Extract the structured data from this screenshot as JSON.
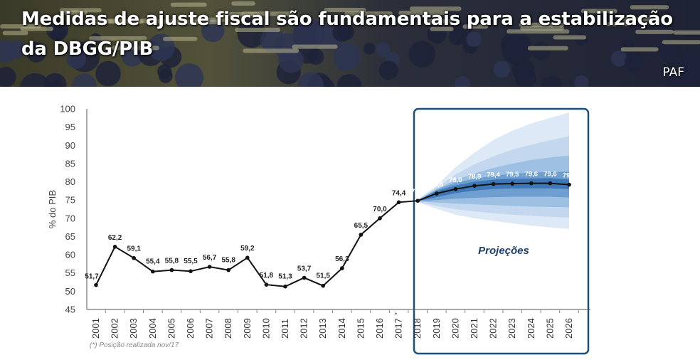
{
  "header": {
    "title": "Medidas de ajuste fiscal são fundamentais para a estabilização da DBGG/PIB",
    "tag": "PAF"
  },
  "footnote": "(*) Posição realizada nov/17",
  "colors": {
    "line": "#111111",
    "projection_border": "#1f4e79",
    "fan_outer": "#dde9f6",
    "fan_2": "#c3d8ee",
    "fan_3": "#9dc0e2",
    "fan_4": "#6f9fd0",
    "fan_inner": "#3f78b6",
    "projection_label": "#1f3f68"
  },
  "chart_data": {
    "type": "line",
    "ylabel": "% do PIB",
    "ylim": [
      45,
      100
    ],
    "yticks": [
      45,
      50,
      55,
      60,
      65,
      70,
      75,
      80,
      85,
      90,
      95,
      100
    ],
    "grid": false,
    "categories": [
      "2001",
      "2002",
      "2003",
      "2004",
      "2005",
      "2006",
      "2007",
      "2008",
      "2009",
      "2010",
      "2011",
      "2012",
      "2013",
      "2014",
      "2015",
      "2016",
      "2017",
      "2018",
      "2019",
      "2020",
      "2021",
      "2022",
      "2023",
      "2024",
      "2025",
      "2026"
    ],
    "category_note": {
      "2017": "*"
    },
    "series": [
      {
        "values": [
          51.7,
          62.2,
          59.1,
          55.4,
          55.8,
          55.5,
          56.7,
          55.8,
          59.2,
          51.8,
          51.3,
          53.7,
          51.5,
          56.3,
          65.5,
          70.0,
          74.4,
          74.8,
          76.8,
          78.0,
          78.9,
          79.4,
          79.5,
          79.6,
          79.6,
          79.2
        ],
        "labels": [
          "51,7",
          "62,2",
          "59,1",
          "55,4",
          "55,8",
          "55,5",
          "56,7",
          "55,8",
          "59,2",
          "51,8",
          "51,3",
          "53,7",
          "51,5",
          "56,3",
          "65,5",
          "70,0",
          "74,4",
          "74,8",
          "76,8",
          "78,0",
          "78,9",
          "79,4",
          "79,5",
          "79,6",
          "79,6",
          "79,2"
        ]
      }
    ],
    "projection": {
      "label": "Projeções",
      "start": "2018",
      "end": "2026",
      "fan_bands": [
        {
          "lower": [
            74.4,
            72.6,
            71.0,
            70.0,
            69.3,
            68.6,
            68.0,
            67.5,
            67.1
          ],
          "upper": [
            75.2,
            79.0,
            84.0,
            88.0,
            91.5,
            94.0,
            96.0,
            97.5,
            99.0
          ]
        },
        {
          "lower": [
            74.5,
            73.4,
            72.5,
            71.9,
            71.4,
            71.0,
            70.7,
            70.4,
            70.2
          ],
          "upper": [
            75.1,
            78.5,
            82.0,
            84.8,
            87.0,
            88.8,
            90.2,
            91.4,
            92.5
          ]
        },
        {
          "lower": [
            74.6,
            74.3,
            74.0,
            73.8,
            73.6,
            73.4,
            73.2,
            73.1,
            73.0
          ],
          "upper": [
            75.0,
            78.0,
            80.5,
            82.3,
            83.8,
            85.0,
            86.0,
            86.7,
            87.2
          ]
        },
        {
          "lower": [
            74.7,
            75.0,
            75.4,
            75.6,
            75.8,
            75.9,
            75.9,
            75.9,
            75.7
          ],
          "upper": [
            74.9,
            77.8,
            79.8,
            80.8,
            81.6,
            82.2,
            82.5,
            82.7,
            82.8
          ]
        },
        {
          "lower": [
            74.75,
            75.8,
            76.9,
            77.6,
            78.0,
            78.2,
            78.2,
            78.2,
            78.0
          ],
          "upper": [
            74.85,
            77.5,
            79.0,
            80.0,
            80.6,
            80.8,
            80.9,
            81.0,
            80.6
          ]
        }
      ]
    }
  }
}
